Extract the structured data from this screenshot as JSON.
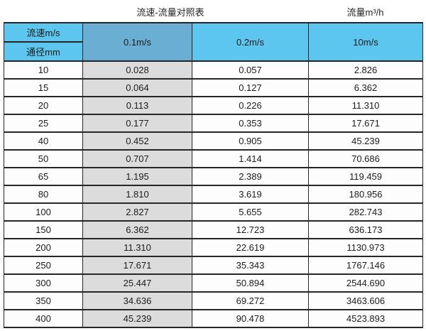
{
  "page_titles": {
    "left": "流速-流量对照表",
    "right": "流量m³/h"
  },
  "table": {
    "corner": {
      "top": "流速m/s",
      "bottom": "通径mm"
    },
    "velocity_columns": [
      "0.1m/s",
      "0.2m/s",
      "10m/s"
    ],
    "rows": [
      {
        "diameter": "10",
        "values": [
          "0.028",
          "0.057",
          "2.826"
        ]
      },
      {
        "diameter": "15",
        "values": [
          "0.064",
          "0.127",
          "6.362"
        ]
      },
      {
        "diameter": "20",
        "values": [
          "0.113",
          "0.226",
          "11.310"
        ]
      },
      {
        "diameter": "25",
        "values": [
          "0.177",
          "0.353",
          "17.671"
        ]
      },
      {
        "diameter": "40",
        "values": [
          "0.452",
          "0.905",
          "45.239"
        ]
      },
      {
        "diameter": "50",
        "values": [
          "0.707",
          "1.414",
          "70.686"
        ]
      },
      {
        "diameter": "65",
        "values": [
          "1.195",
          "2.389",
          "119.459"
        ]
      },
      {
        "diameter": "80",
        "values": [
          "1.810",
          "3.619",
          "180.956"
        ]
      },
      {
        "diameter": "100",
        "values": [
          "2.827",
          "5.655",
          "282.743"
        ]
      },
      {
        "diameter": "150",
        "values": [
          "6.362",
          "12.723",
          "636.173"
        ]
      },
      {
        "diameter": "200",
        "values": [
          "11.310",
          "22.619",
          "1130.973"
        ]
      },
      {
        "diameter": "250",
        "values": [
          "17.671",
          "35.343",
          "1767.146"
        ]
      },
      {
        "diameter": "300",
        "values": [
          "25.447",
          "50.894",
          "2544.690"
        ]
      },
      {
        "diameter": "350",
        "values": [
          "34.636",
          "69.272",
          "3463.606"
        ]
      },
      {
        "diameter": "400",
        "values": [
          "45.239",
          "90.478",
          "4523.893"
        ]
      }
    ]
  },
  "colors": {
    "header_blue": "#5cc6ee",
    "header_blue_muted": "#6aaed3",
    "highlight_column_gray": "#dcdcdc",
    "border": "#262626"
  },
  "chart_data": {
    "type": "table",
    "title": "流速-流量对照表",
    "unit_label": "流量m³/h",
    "columns": [
      "通径mm",
      "0.1m/s",
      "0.2m/s",
      "10m/s"
    ],
    "rows": [
      [
        10,
        0.028,
        0.057,
        2.826
      ],
      [
        15,
        0.064,
        0.127,
        6.362
      ],
      [
        20,
        0.113,
        0.226,
        11.31
      ],
      [
        25,
        0.177,
        0.353,
        17.671
      ],
      [
        40,
        0.452,
        0.905,
        45.239
      ],
      [
        50,
        0.707,
        1.414,
        70.686
      ],
      [
        65,
        1.195,
        2.389,
        119.459
      ],
      [
        80,
        1.81,
        3.619,
        180.956
      ],
      [
        100,
        2.827,
        5.655,
        282.743
      ],
      [
        150,
        6.362,
        12.723,
        636.173
      ],
      [
        200,
        11.31,
        22.619,
        1130.973
      ],
      [
        250,
        17.671,
        35.343,
        1767.146
      ],
      [
        300,
        25.447,
        50.894,
        2544.69
      ],
      [
        350,
        34.636,
        69.272,
        3463.606
      ],
      [
        400,
        45.239,
        90.478,
        4523.893
      ]
    ]
  }
}
